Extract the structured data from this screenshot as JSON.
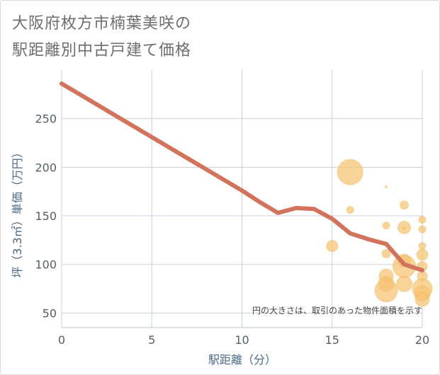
{
  "chart_data": {
    "type": "scatter",
    "title_line1": "大阪府枚方市楠葉美咲の",
    "title_line2": "駅距離別中古戸建て価格",
    "xlabel": "駅距離（分）",
    "ylabel": "坪（3.3㎡）単価（万円）",
    "xlim": [
      0,
      20
    ],
    "ylim": [
      35,
      300
    ],
    "x_ticks": [
      0,
      5,
      10,
      15,
      20
    ],
    "y_ticks": [
      50,
      100,
      150,
      200,
      250
    ],
    "grid": true,
    "note": "円の大きさは、取引のあった物件面積を示す",
    "line_series": {
      "name": "trend",
      "x": [
        0,
        1,
        2,
        3,
        4,
        5,
        6,
        7,
        8,
        9,
        10,
        11,
        12,
        13,
        14,
        15,
        16,
        17,
        18,
        19,
        20
      ],
      "y": [
        286,
        275,
        264,
        253,
        242,
        231,
        220,
        209,
        198,
        187,
        176,
        164,
        153,
        158,
        157,
        147,
        132,
        126,
        121,
        100,
        94
      ]
    },
    "scatter_series": {
      "name": "transactions",
      "points": [
        {
          "x": 16,
          "y": 195,
          "size": 18
        },
        {
          "x": 16,
          "y": 156,
          "size": 5
        },
        {
          "x": 15,
          "y": 119,
          "size": 8
        },
        {
          "x": 18,
          "y": 180,
          "size": 1.5
        },
        {
          "x": 18,
          "y": 140,
          "size": 5
        },
        {
          "x": 18,
          "y": 111,
          "size": 6
        },
        {
          "x": 18,
          "y": 88,
          "size": 10
        },
        {
          "x": 18,
          "y": 80,
          "size": 11
        },
        {
          "x": 18,
          "y": 73,
          "size": 16
        },
        {
          "x": 19,
          "y": 161,
          "size": 6
        },
        {
          "x": 19,
          "y": 138,
          "size": 9
        },
        {
          "x": 19,
          "y": 137,
          "size": 2
        },
        {
          "x": 19,
          "y": 98,
          "size": 16
        },
        {
          "x": 19,
          "y": 104,
          "size": 9
        },
        {
          "x": 19,
          "y": 80,
          "size": 11
        },
        {
          "x": 20,
          "y": 146,
          "size": 5
        },
        {
          "x": 20,
          "y": 136,
          "size": 5
        },
        {
          "x": 20,
          "y": 119,
          "size": 5
        },
        {
          "x": 20,
          "y": 110,
          "size": 8
        },
        {
          "x": 20,
          "y": 98,
          "size": 7
        },
        {
          "x": 20,
          "y": 88,
          "size": 7
        },
        {
          "x": 20,
          "y": 75,
          "size": 14
        },
        {
          "x": 20,
          "y": 70,
          "size": 11
        },
        {
          "x": 20,
          "y": 64,
          "size": 10
        }
      ]
    },
    "colors": {
      "line": "#d4735c",
      "bubble": "#f5c471",
      "grid": "#c8d2dc",
      "plot_background": "#ffffff"
    }
  }
}
